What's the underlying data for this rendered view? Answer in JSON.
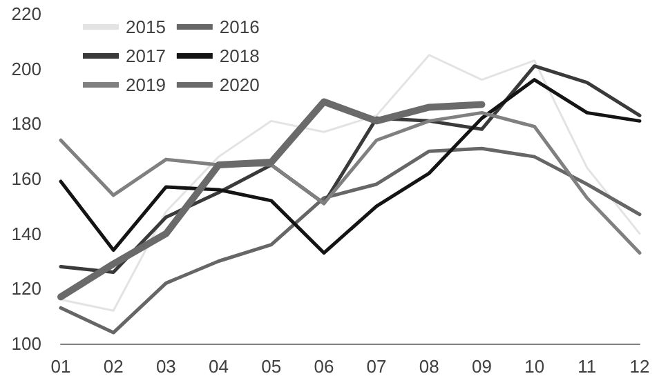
{
  "chart_data": {
    "type": "line",
    "categories": [
      "01",
      "02",
      "03",
      "04",
      "05",
      "06",
      "07",
      "08",
      "09",
      "10",
      "11",
      "12"
    ],
    "series": [
      {
        "name": "2015",
        "color": "#e3e3e3",
        "values": [
          116,
          112,
          148,
          168,
          181,
          177,
          183,
          205,
          196,
          203,
          164,
          140
        ]
      },
      {
        "name": "2016",
        "color": "#666666",
        "values": [
          113,
          104,
          122,
          130,
          136,
          153,
          158,
          170,
          171,
          168,
          158,
          147
        ]
      },
      {
        "name": "2017",
        "color": "#3a3a3a",
        "values": [
          128,
          126,
          146,
          155,
          165,
          151,
          182,
          181,
          178,
          201,
          195,
          183
        ]
      },
      {
        "name": "2018",
        "color": "#141414",
        "values": [
          159,
          134,
          157,
          156,
          152,
          133,
          150,
          162,
          182,
          196,
          184,
          181
        ]
      },
      {
        "name": "2019",
        "color": "#808080",
        "values": [
          174,
          154,
          167,
          165,
          165,
          151,
          174,
          181,
          184,
          179,
          153,
          133
        ]
      },
      {
        "name": "2020",
        "color": "#6a6a6a",
        "values": [
          117,
          129,
          140,
          165,
          166,
          188,
          181,
          186,
          187,
          null,
          null,
          null
        ]
      }
    ],
    "ylim": [
      100,
      220
    ],
    "yticks": [
      100,
      120,
      140,
      160,
      180,
      200,
      220
    ],
    "grid": false,
    "legend": "top left",
    "marker": "none",
    "line_style": "solid"
  }
}
